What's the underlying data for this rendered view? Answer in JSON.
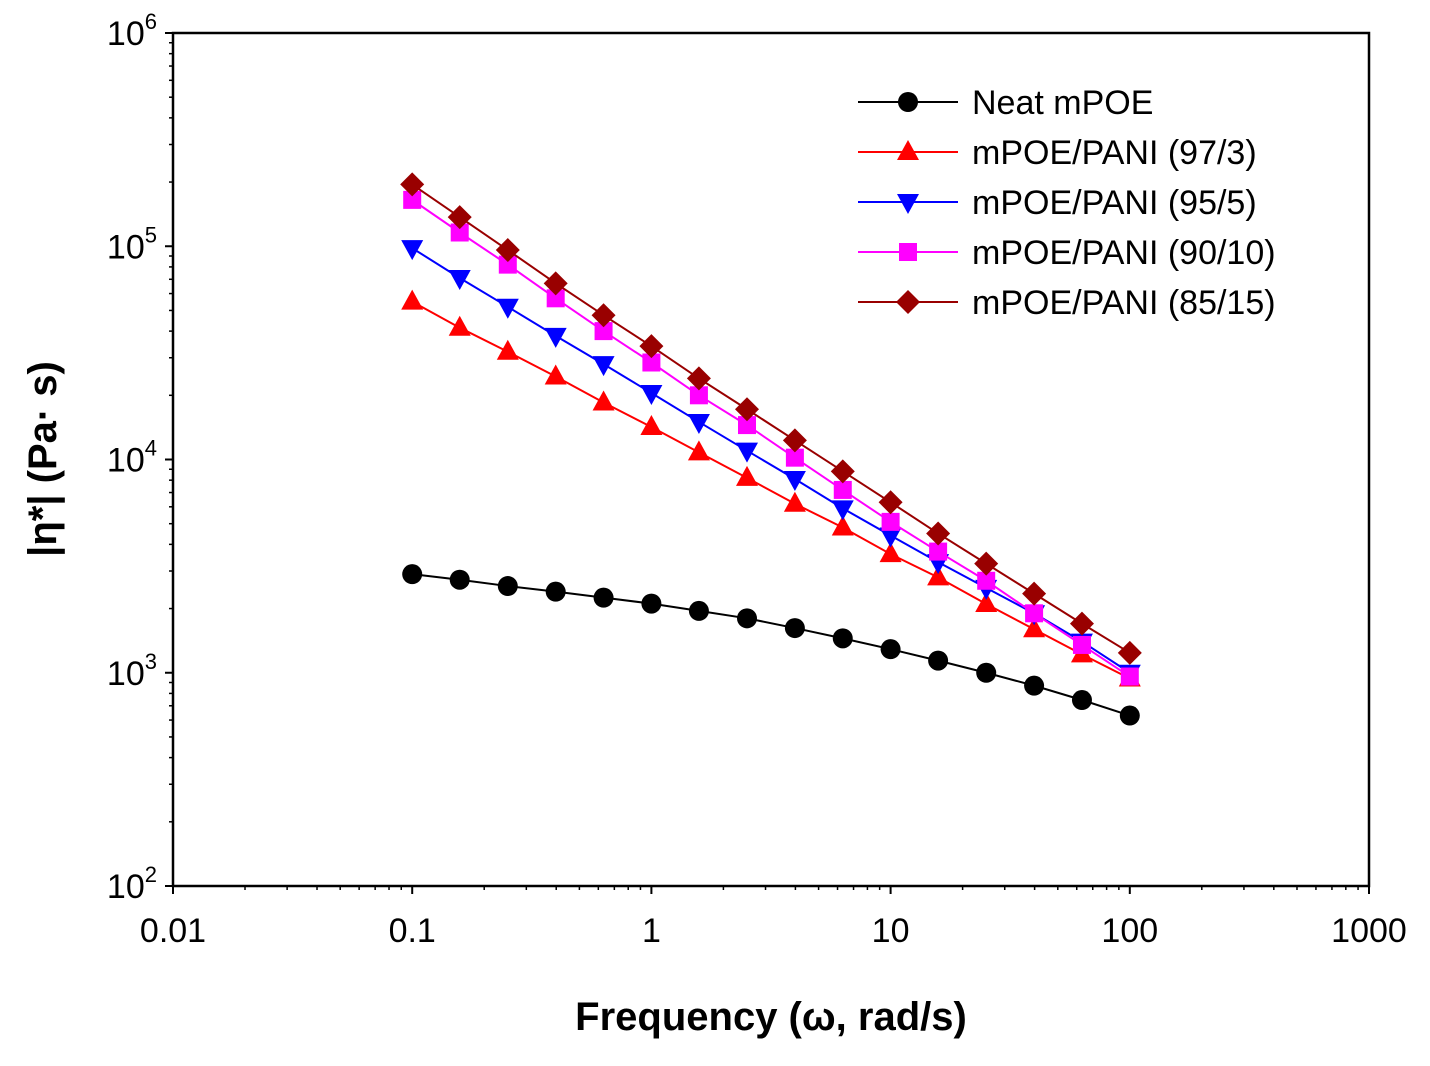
{
  "chart_data": {
    "type": "line",
    "title": "",
    "xlabel": "Frequency (ω, rad/s)",
    "ylabel": "|η*| (Pa· s)",
    "xscale": "log",
    "yscale": "log",
    "xlim": [
      0.01,
      1000
    ],
    "ylim": [
      100,
      1000000
    ],
    "grid": false,
    "legend_position": "top-right",
    "x_ticks": [
      {
        "value": 0.01,
        "label": "0.01"
      },
      {
        "value": 0.1,
        "label": "0.1"
      },
      {
        "value": 1,
        "label": "1"
      },
      {
        "value": 10,
        "label": "10"
      },
      {
        "value": 100,
        "label": "100"
      },
      {
        "value": 1000,
        "label": "1000"
      }
    ],
    "y_ticks": [
      {
        "value": 100,
        "base": "10",
        "exp": "2"
      },
      {
        "value": 1000,
        "base": "10",
        "exp": "3"
      },
      {
        "value": 10000,
        "base": "10",
        "exp": "4"
      },
      {
        "value": 100000,
        "base": "10",
        "exp": "5"
      },
      {
        "value": 1000000,
        "base": "10",
        "exp": "6"
      }
    ],
    "x": [
      0.1,
      0.158,
      0.251,
      0.398,
      0.631,
      1,
      1.58,
      2.51,
      3.98,
      6.31,
      10,
      15.8,
      25.1,
      39.8,
      63.1,
      100
    ],
    "series": [
      {
        "name": "Neat mPOE",
        "color": "#000000",
        "marker": "circle",
        "values": [
          2900,
          2730,
          2550,
          2400,
          2250,
          2110,
          1950,
          1800,
          1620,
          1450,
          1290,
          1140,
          1000,
          870,
          745,
          630
        ]
      },
      {
        "name": "mPOE/PANI (97/3)",
        "color": "#ff0000",
        "marker": "triangle-up",
        "values": [
          55000,
          41500,
          32000,
          24500,
          18500,
          14200,
          10800,
          8200,
          6200,
          4800,
          3600,
          2800,
          2100,
          1600,
          1220,
          940
        ]
      },
      {
        "name": "mPOE/PANI (95/5)",
        "color": "#0000ff",
        "marker": "triangle-down",
        "values": [
          98000,
          71000,
          52000,
          38000,
          28000,
          20500,
          15000,
          11000,
          8100,
          5900,
          4400,
          3300,
          2500,
          1900,
          1400,
          1000
        ]
      },
      {
        "name": "mPOE/PANI (90/10)",
        "color": "#ff00ff",
        "marker": "square",
        "values": [
          165000,
          116000,
          82000,
          57000,
          40000,
          28500,
          20000,
          14500,
          10200,
          7200,
          5100,
          3700,
          2700,
          1900,
          1350,
          960
        ]
      },
      {
        "name": "mPOE/PANI (85/15)",
        "color": "#990000",
        "marker": "diamond",
        "values": [
          195000,
          137000,
          96000,
          67000,
          47500,
          34000,
          24000,
          17200,
          12300,
          8800,
          6300,
          4500,
          3250,
          2350,
          1700,
          1240
        ]
      }
    ]
  }
}
